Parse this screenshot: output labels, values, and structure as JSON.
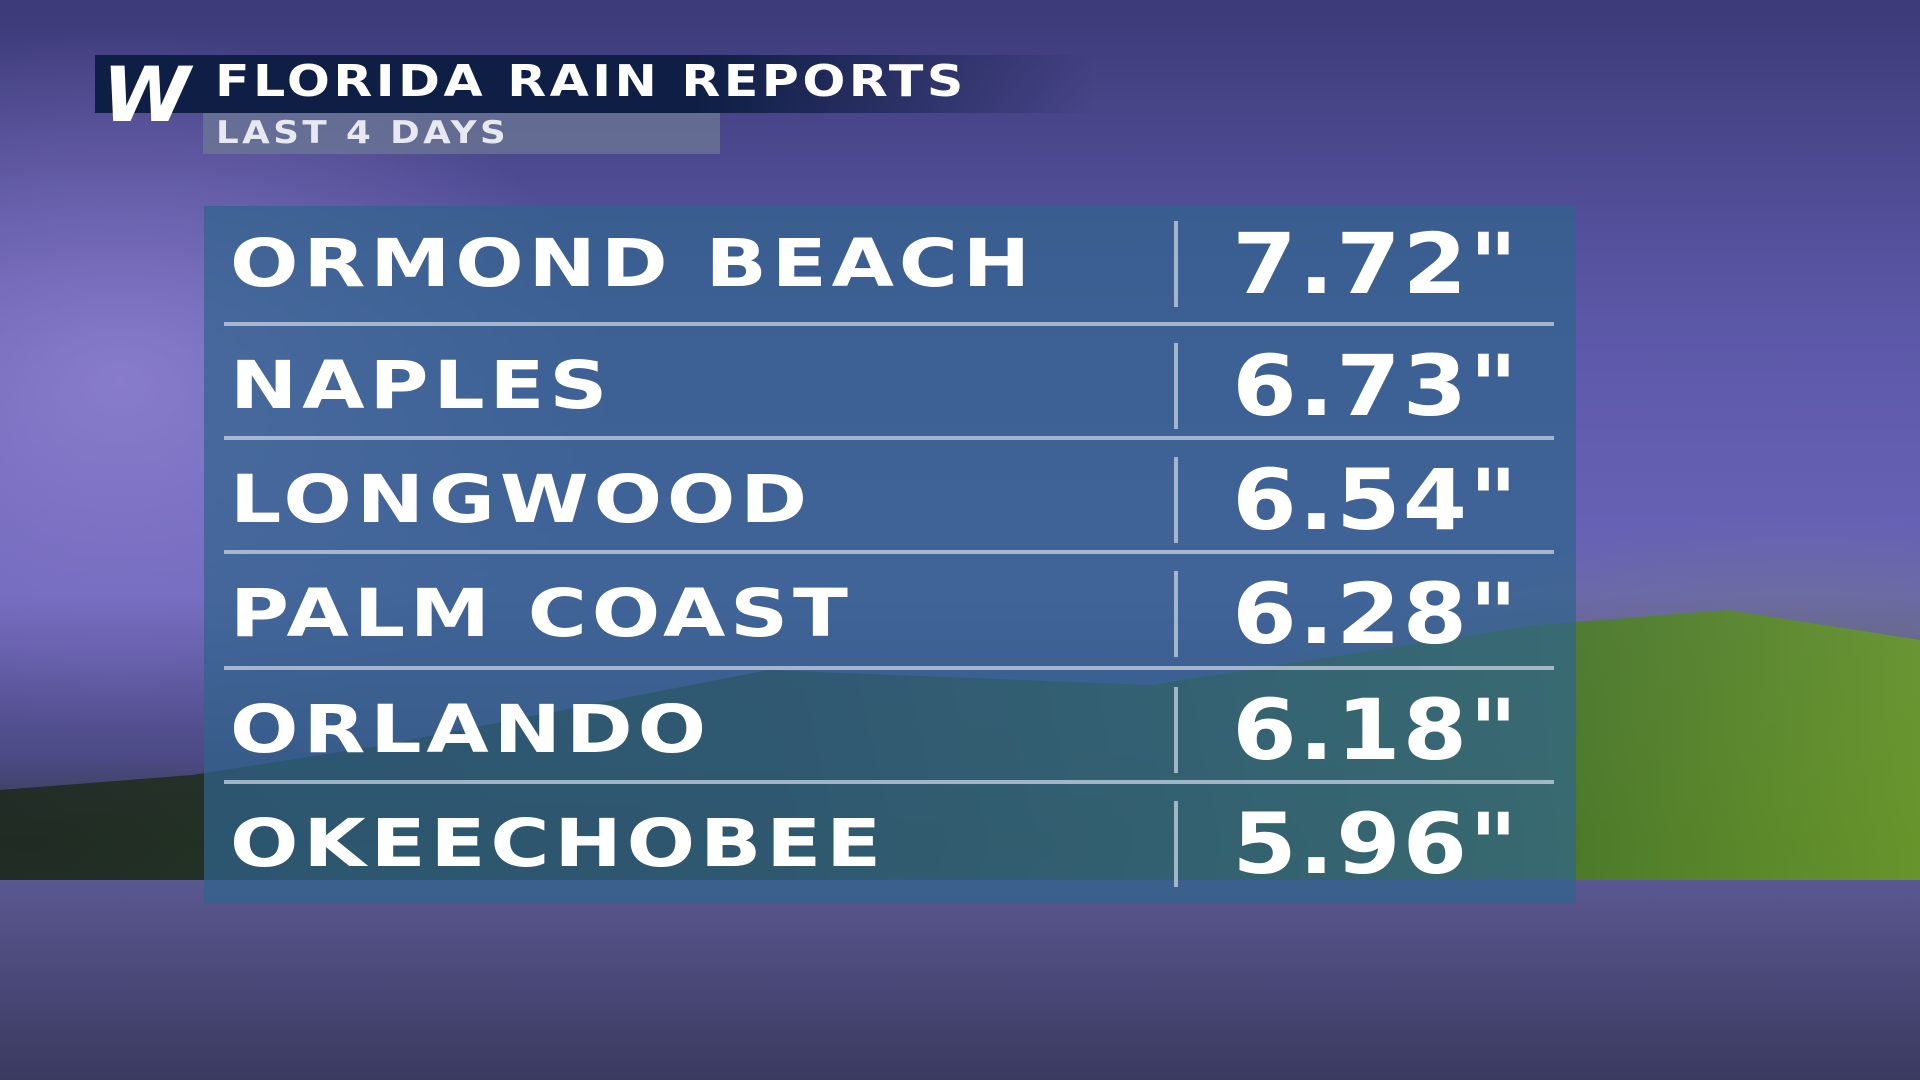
{
  "header": {
    "logo": "W",
    "title": "FLORIDA RAIN REPORTS",
    "subtitle": "LAST 4 DAYS"
  },
  "table": {
    "rows": [
      [
        "ORMOND BEACH",
        "7.72\""
      ],
      [
        "NAPLES",
        "6.73\""
      ],
      [
        "LONGWOOD",
        "6.54\""
      ],
      [
        "PALM COAST",
        "6.28\""
      ],
      [
        "ORLANDO",
        "6.18\""
      ],
      [
        "OKEECHOBEE",
        "5.96\""
      ]
    ]
  }
}
